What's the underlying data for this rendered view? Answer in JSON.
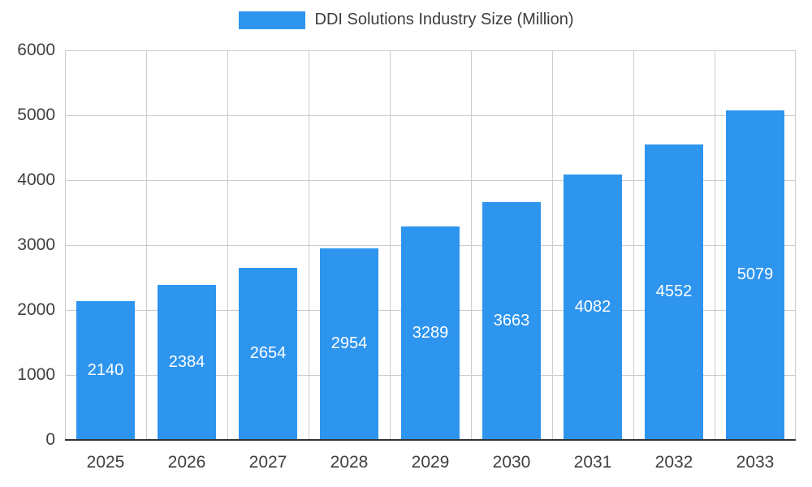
{
  "legend": {
    "title": "DDI Solutions Industry Size (Million)"
  },
  "chart_data": {
    "type": "bar",
    "title": "DDI Solutions Industry Size (Million)",
    "series_name": "DDI Solutions Industry Size (Million)",
    "categories": [
      "2025",
      "2026",
      "2027",
      "2028",
      "2029",
      "2030",
      "2031",
      "2032",
      "2033"
    ],
    "values": [
      2140,
      2384,
      2654,
      2954,
      3289,
      3663,
      4082,
      4552,
      5079
    ],
    "xlabel": "",
    "ylabel": "",
    "ylim": [
      0,
      6000
    ],
    "y_ticks": [
      0,
      1000,
      2000,
      3000,
      4000,
      5000,
      6000
    ],
    "grid": true,
    "legend_position": "top-center",
    "bar_color": "#2e95ef",
    "value_label_color": "#ffffff",
    "axis_text_color": "#404040",
    "gridline_color": "#cccccc",
    "baseline_color": "#333333",
    "background_color": "#ffffff"
  }
}
